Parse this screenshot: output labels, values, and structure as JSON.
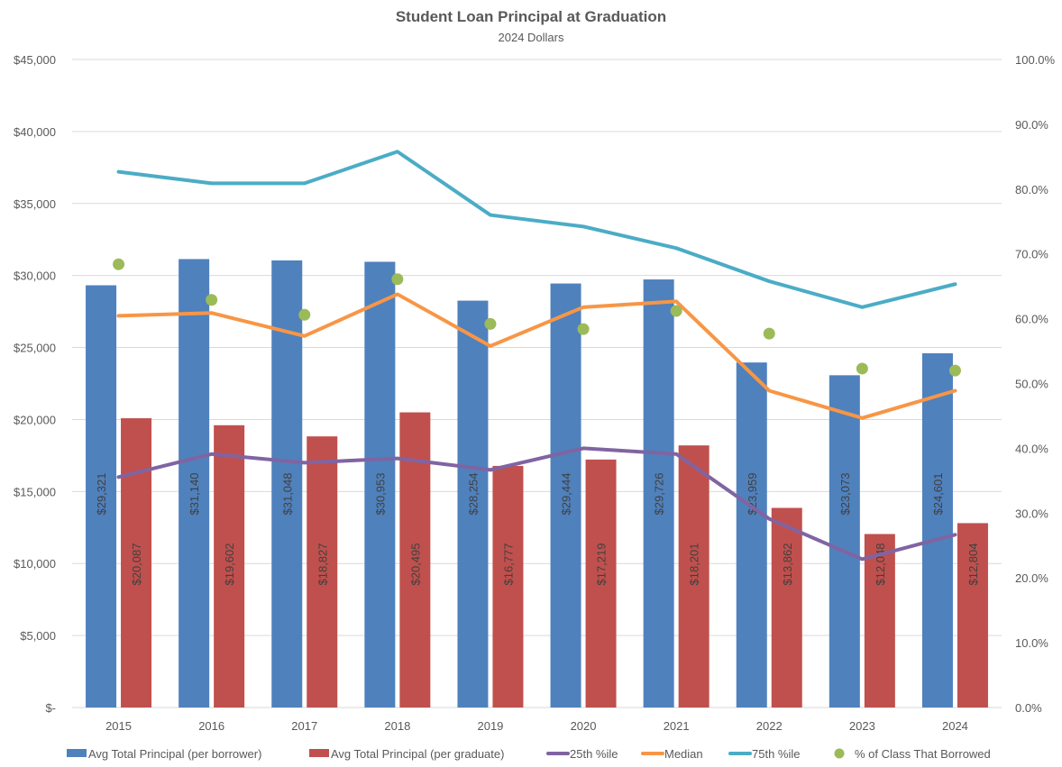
{
  "chart_data": {
    "type": "bar",
    "title": "Student Loan Principal at Graduation",
    "subtitle": "2024 Dollars",
    "xlabel": "",
    "ylabel": "",
    "categories": [
      "2015",
      "2016",
      "2017",
      "2018",
      "2019",
      "2020",
      "2021",
      "2022",
      "2023",
      "2024"
    ],
    "y_left": {
      "lim": [
        0,
        45000
      ],
      "ticks": [
        0,
        5000,
        10000,
        15000,
        20000,
        25000,
        30000,
        35000,
        40000,
        45000
      ],
      "tick_labels": [
        "$-",
        "$5,000",
        "$10,000",
        "$15,000",
        "$20,000",
        "$25,000",
        "$30,000",
        "$35,000",
        "$40,000",
        "$45,000"
      ]
    },
    "y_right": {
      "lim": [
        0,
        100
      ],
      "ticks": [
        0,
        10,
        20,
        30,
        40,
        50,
        60,
        70,
        80,
        90,
        100
      ],
      "tick_labels": [
        "0.0%",
        "10.0%",
        "20.0%",
        "30.0%",
        "40.0%",
        "50.0%",
        "60.0%",
        "70.0%",
        "80.0%",
        "90.0%",
        "100.0%"
      ]
    },
    "grid": true,
    "legend_position": "bottom",
    "series": [
      {
        "name": "Avg Total Principal (per borrower)",
        "type": "bar",
        "axis": "left",
        "color": "#4F81BD",
        "values": [
          29321,
          31140,
          31048,
          30953,
          28254,
          29444,
          29726,
          23959,
          23073,
          24601
        ],
        "labels": [
          "$29,321",
          "$31,140",
          "$31,048",
          "$30,953",
          "$28,254",
          "$29,444",
          "$29,726",
          "$23,959",
          "$23,073",
          "$24,601"
        ]
      },
      {
        "name": "Avg Total Principal (per graduate)",
        "type": "bar",
        "axis": "left",
        "color": "#C0504D",
        "values": [
          20087,
          19602,
          18827,
          20495,
          16777,
          17219,
          18201,
          13862,
          12048,
          12804
        ],
        "labels": [
          "$20,087",
          "$19,602",
          "$18,827",
          "$20,495",
          "$16,777",
          "$17,219",
          "$18,201",
          "$13,862",
          "$12,048",
          "$12,804"
        ]
      },
      {
        "name": "25th %ile",
        "type": "line",
        "axis": "left",
        "color": "#8064A2",
        "values": [
          16000,
          17600,
          17000,
          17300,
          16500,
          18000,
          17600,
          13100,
          10300,
          12000
        ]
      },
      {
        "name": "Median",
        "type": "line",
        "axis": "left",
        "color": "#F79646",
        "values": [
          27200,
          27400,
          25800,
          28700,
          25100,
          27800,
          28200,
          22000,
          20100,
          22000
        ]
      },
      {
        "name": "75th %ile",
        "type": "line",
        "axis": "left",
        "color": "#4BACC6",
        "values": [
          37200,
          36400,
          36400,
          38600,
          34200,
          33400,
          31900,
          29600,
          27800,
          29400
        ]
      },
      {
        "name": "% of Class That Borrowed",
        "type": "scatter",
        "axis": "right",
        "color": "#9BBB59",
        "values": [
          68.4,
          62.9,
          60.6,
          66.1,
          59.2,
          58.4,
          61.2,
          57.7,
          52.3,
          52.0
        ]
      }
    ]
  }
}
